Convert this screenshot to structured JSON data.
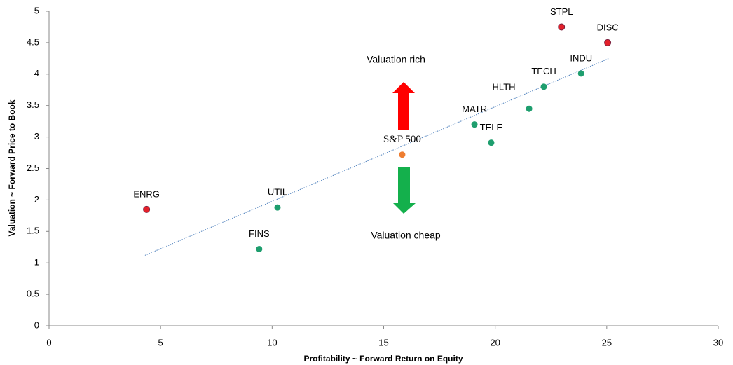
{
  "chart_data": {
    "type": "scatter",
    "xlabel": "Profitability ~ Forward Return on Equity",
    "ylabel": "Valuation ~ Forward Price to Book",
    "annotations": [
      "Valuation rich",
      "Valuation cheap"
    ],
    "labels": [
      "ENRG",
      "FINS",
      "UTIL",
      "S&P 500",
      "MATR",
      "TELE",
      "HLTH",
      "TECH",
      "INDU",
      "STPL",
      "DISC"
    ],
    "x": [
      4.37,
      9.42,
      10.24,
      15.83,
      19.07,
      19.82,
      21.52,
      22.18,
      23.85,
      22.97,
      25.04
    ],
    "y": [
      1.85,
      1.22,
      1.88,
      2.72,
      3.2,
      2.91,
      3.45,
      3.8,
      4.01,
      4.75,
      4.5
    ],
    "colors": [
      "#e3202a",
      "#1e9e6e",
      "#1e9e6e",
      "#ee7d31",
      "#1e9e6e",
      "#1e9e6e",
      "#1e9e6e",
      "#1e9e6e",
      "#1e9e6e",
      "#e3202a",
      "#e3202a"
    ],
    "trendline": {
      "x": [
        4.3,
        25.1
      ],
      "y": [
        1.12,
        4.25
      ],
      "color": "#4f81bd"
    },
    "xlim": [
      0,
      30
    ],
    "xticks": [
      0,
      5,
      10,
      15,
      20,
      25,
      30
    ],
    "ylim": [
      0,
      5
    ],
    "yticks": [
      0,
      0.5,
      1,
      1.5,
      2,
      2.5,
      3,
      3.5,
      4,
      4.5,
      5
    ],
    "grid": false
  }
}
